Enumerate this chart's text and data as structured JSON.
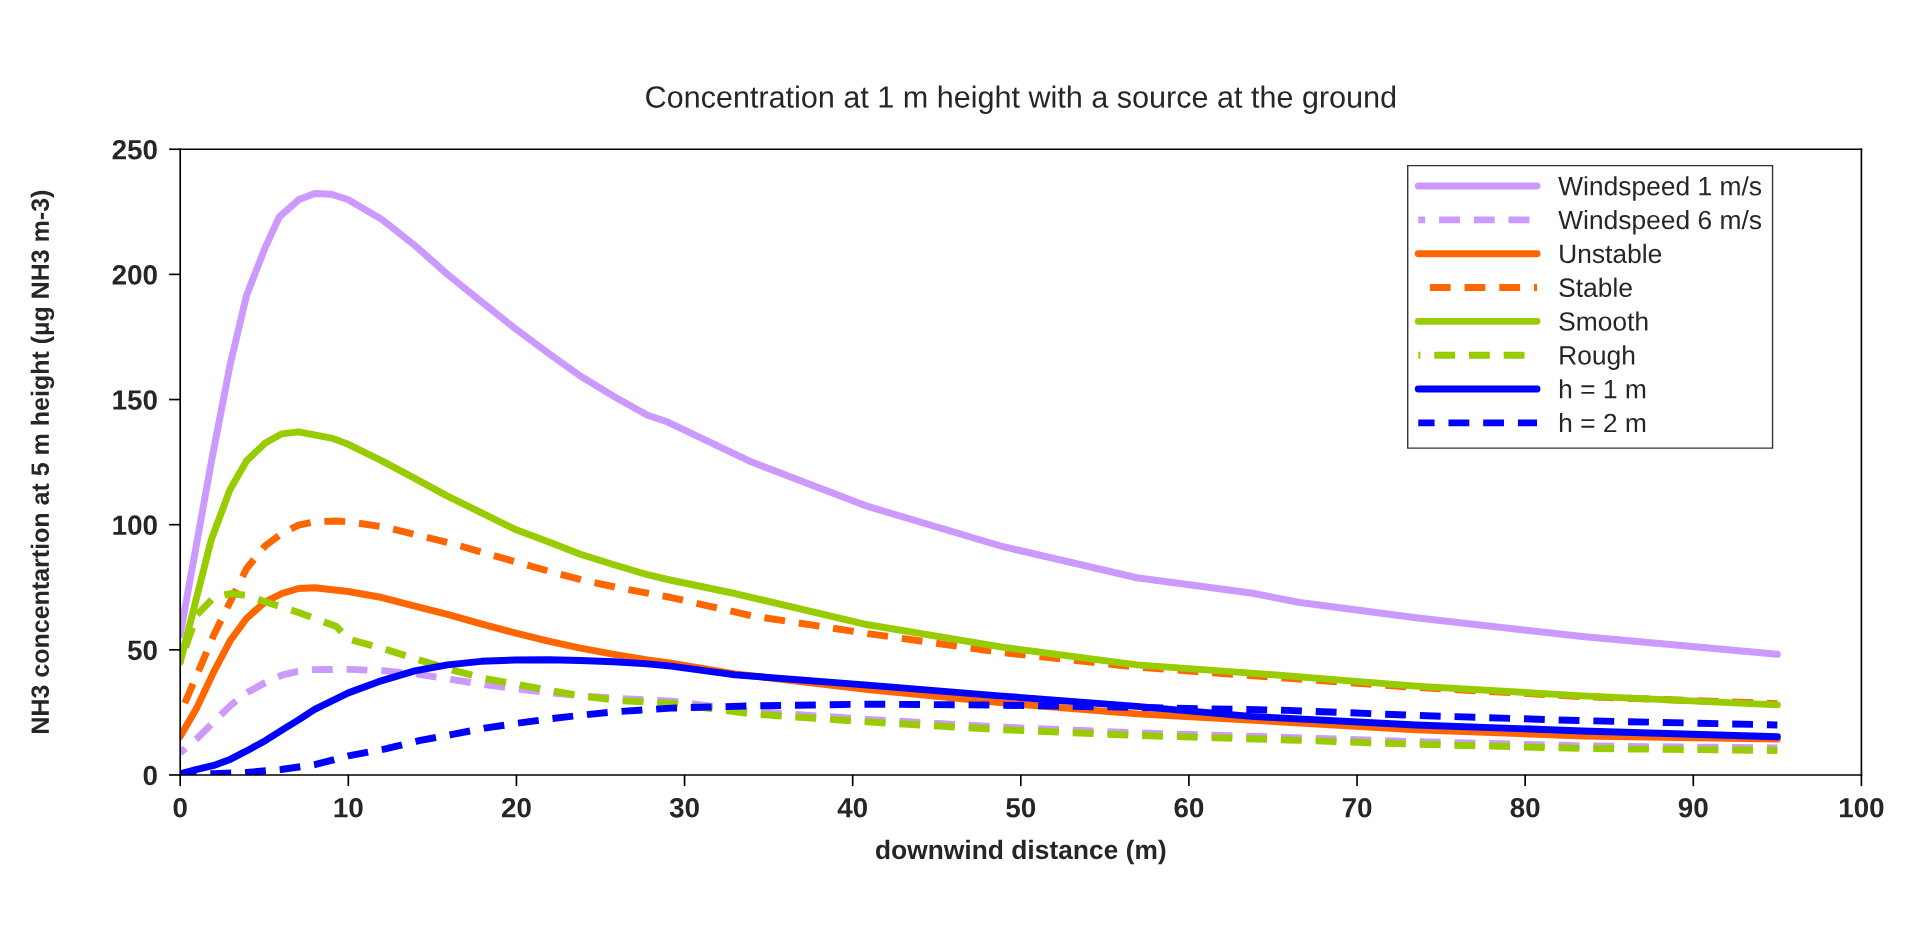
{
  "chart_data": {
    "type": "line",
    "title": "Concentration at 1 m height with a source at the ground",
    "xlabel": "downwind distance (m)",
    "ylabel": "NH3 concentartion at 5 m height (µg NH3 m-3)",
    "xlim": [
      0,
      100
    ],
    "ylim": [
      0,
      250
    ],
    "xticks": [
      0,
      10,
      20,
      30,
      40,
      50,
      60,
      70,
      80,
      90,
      100
    ],
    "yticks": [
      0,
      50,
      100,
      150,
      200,
      250
    ],
    "grid": false,
    "legend": "top right",
    "marker": "none",
    "series": [
      {
        "name": "Windspeed 1 m/s",
        "color": "#cc99ff",
        "line_style": "solid",
        "x": [
          0,
          1.85,
          2.96,
          3.95,
          5.06,
          5.9,
          7.04,
          8,
          9,
          10,
          12,
          13.95,
          15.9,
          17.9,
          19.9,
          21.9,
          23.8,
          25.8,
          27.8,
          29,
          34,
          40.9,
          48.9,
          56.9,
          63.7,
          66.6,
          73.5,
          83.4,
          95
        ],
        "values": [
          56,
          125,
          163.6,
          191.7,
          210.8,
          223,
          229.8,
          232.3,
          232,
          229.8,
          221.9,
          211.6,
          200,
          189.2,
          178.5,
          168.5,
          159.4,
          151.2,
          143.7,
          141,
          125,
          107.3,
          91.3,
          78.8,
          72.7,
          68.9,
          62.8,
          55.3,
          48.2
        ]
      },
      {
        "name": "Windspeed 6 m/s",
        "color": "#cc99ff",
        "line_style": "dashed",
        "x": [
          0,
          1,
          2,
          3,
          3.95,
          5.06,
          6.05,
          7,
          8,
          10,
          12.2,
          14.2,
          16.2,
          18.1,
          20.1,
          22.1,
          24,
          26,
          29.2,
          34,
          40.9,
          48.9,
          56.9,
          65.9,
          73.5,
          83.4,
          95
        ],
        "values": [
          8.8,
          14.6,
          21.2,
          27.8,
          32.8,
          36.9,
          39.9,
          41.4,
          42.1,
          42.2,
          41.6,
          40.2,
          38.1,
          36.1,
          34.4,
          32.8,
          31.5,
          30.6,
          29.5,
          25.4,
          22.2,
          19.1,
          16.8,
          15,
          13.3,
          11.6,
          10.8
        ]
      },
      {
        "name": "Unstable",
        "color": "#ff6600",
        "line_style": "solid",
        "x": [
          0,
          1,
          1.98,
          2.96,
          3.95,
          5.06,
          6.05,
          7.04,
          8,
          10,
          12,
          13.95,
          15.9,
          17.9,
          19.9,
          21.9,
          23.8,
          25.8,
          27.8,
          29.2,
          33,
          40.9,
          48.9,
          56.9,
          66.6,
          73.5,
          83.4,
          95
        ],
        "values": [
          15.4,
          27,
          41,
          53.5,
          62.6,
          69.2,
          72.5,
          74.5,
          74.8,
          73.3,
          70.9,
          67.5,
          64.2,
          60.4,
          56.8,
          53.5,
          50.7,
          48.2,
          46,
          44.7,
          40.4,
          34.1,
          28.8,
          24.4,
          20.8,
          18.1,
          15.6,
          14.4
        ]
      },
      {
        "name": "Stable",
        "color": "#ff6600",
        "line_style": "dashed",
        "x": [
          0,
          1,
          2,
          3.95,
          5.06,
          6.05,
          7.04,
          8,
          9.3,
          10.2,
          12.2,
          14.2,
          16.2,
          18.1,
          20.1,
          22.1,
          24,
          26.2,
          29.2,
          34,
          40.9,
          48.9,
          56.9,
          65.9,
          73.5,
          83.4,
          95
        ],
        "values": [
          24.5,
          40,
          56,
          82.5,
          91.6,
          96.5,
          99.8,
          101.2,
          101.5,
          101,
          99,
          95.7,
          92.4,
          88.7,
          84.9,
          81.1,
          77.8,
          74.6,
          70.9,
          63.6,
          56.5,
          48.9,
          43.1,
          38.6,
          35,
          31.3,
          28.5
        ]
      },
      {
        "name": "Smooth",
        "color": "#99cc00",
        "line_style": "solid",
        "x": [
          0,
          1.85,
          2.96,
          3.95,
          5.06,
          6.05,
          7.04,
          9,
          10,
          12,
          13.95,
          15.9,
          17.9,
          19.9,
          21.9,
          23.8,
          25.8,
          27.8,
          29.2,
          33,
          40.9,
          48.9,
          56.9,
          63.7,
          73.5,
          83.4,
          95
        ],
        "values": [
          45,
          94,
          114,
          125.5,
          132.6,
          136.3,
          137.1,
          134.6,
          132.1,
          125.5,
          118.5,
          111.4,
          104.8,
          98.2,
          93.2,
          88.2,
          84,
          80,
          77.8,
          72.5,
          60,
          51.1,
          44,
          40.7,
          35.5,
          31.6,
          28
        ]
      },
      {
        "name": "Rough",
        "color": "#99cc00",
        "line_style": "dashed",
        "x": [
          0,
          1,
          2,
          3,
          3.95,
          5.06,
          7,
          9.3,
          10,
          12.2,
          14.2,
          16.2,
          18.1,
          20.1,
          22.1,
          24,
          26.2,
          29.2,
          34,
          40.9,
          48.9,
          56.9,
          65.9,
          73.5,
          83.4,
          95
        ],
        "values": [
          45,
          64,
          70.9,
          72.5,
          71.7,
          69.2,
          65,
          59.3,
          54.3,
          50.2,
          46,
          41.9,
          38.6,
          36.1,
          33.6,
          31.5,
          29.7,
          28.6,
          24.4,
          21.2,
          18.1,
          15.8,
          14,
          12.3,
          10.6,
          9.8
        ]
      },
      {
        "name": "h = 1 m",
        "color": "#0000ff",
        "line_style": "solid",
        "x": [
          0,
          1,
          2,
          3,
          3.95,
          5.06,
          6.05,
          7.04,
          8,
          10,
          12,
          13.95,
          15.9,
          17.9,
          19.9,
          21.9,
          23.8,
          25.8,
          27.8,
          29.2,
          33,
          40.9,
          48.9,
          56.9,
          63.7,
          73.5,
          83.4,
          95
        ],
        "values": [
          0.5,
          2.2,
          3.8,
          6.3,
          9.6,
          13.7,
          17.9,
          22,
          26.2,
          32.8,
          37.7,
          41.6,
          44,
          45.4,
          45.9,
          46,
          45.7,
          45.2,
          44.4,
          43.5,
          40,
          35.9,
          31.5,
          27.4,
          23.4,
          20,
          17.6,
          15.3
        ]
      },
      {
        "name": "h = 2 m",
        "color": "#0000ff",
        "line_style": "dashed",
        "x": [
          0,
          2,
          3.95,
          6,
          8,
          10,
          12.2,
          14.2,
          16.2,
          18.1,
          20.1,
          22.1,
          24,
          26,
          29.2,
          34,
          40.9,
          48.9,
          56.9,
          65.9,
          73.5,
          83.4,
          95
        ],
        "values": [
          0.2,
          0.5,
          1,
          2.2,
          4.1,
          7.6,
          10.4,
          13.7,
          16.2,
          18.7,
          20.7,
          22.5,
          24,
          25.3,
          26.7,
          27.6,
          28.3,
          27.9,
          27,
          25.8,
          23.8,
          21.7,
          20
        ]
      }
    ]
  }
}
